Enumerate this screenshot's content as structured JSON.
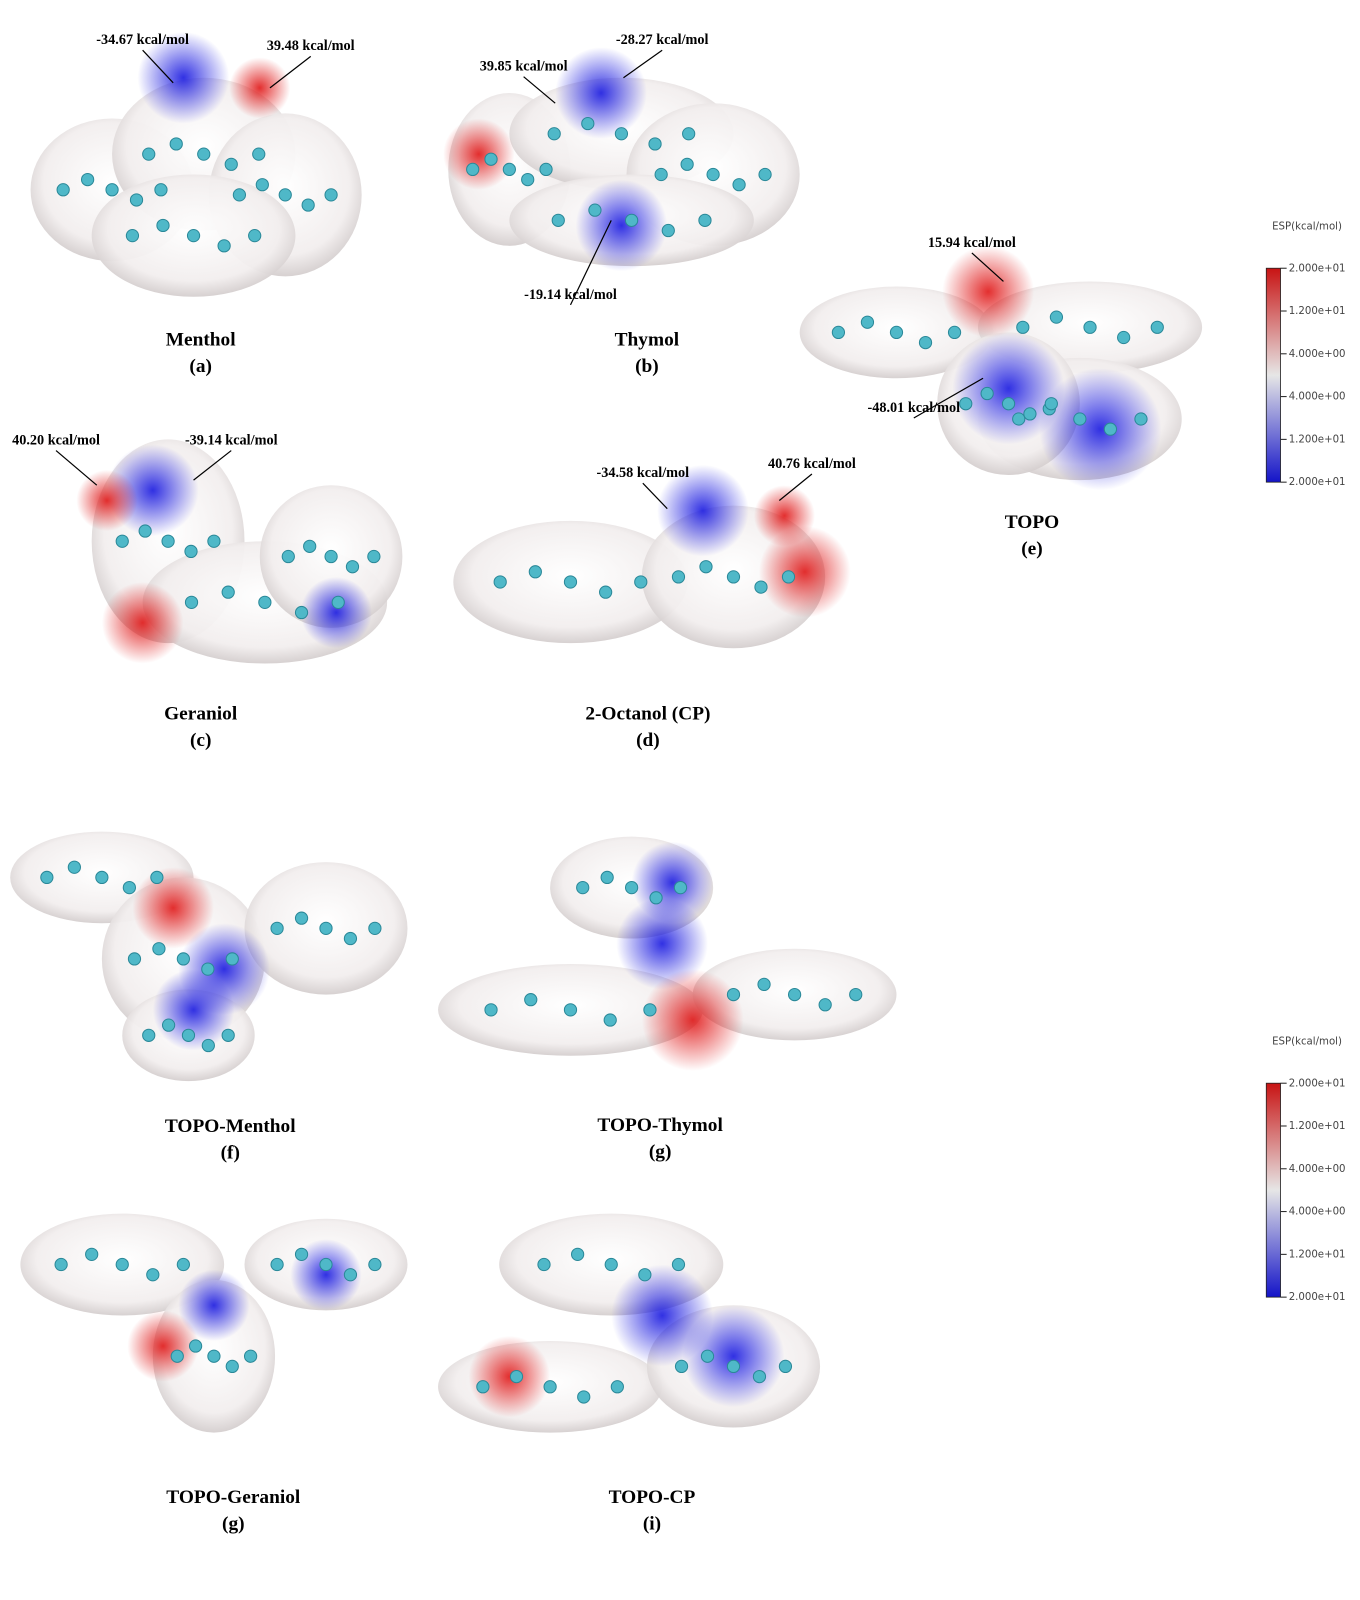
{
  "panels": [
    {
      "name": "Menthol",
      "letter": "(a)",
      "annotations": [
        "-34.67  kcal/mol",
        "39.48 kcal/mol"
      ]
    },
    {
      "name": "Thymol",
      "letter": "(b)",
      "annotations": [
        "-28.27 kcal/mol",
        "39.85 kcal/mol",
        "-19.14 kcal/mol"
      ]
    },
    {
      "name": "TOPO",
      "letter": "(e)",
      "annotations": [
        "15.94 kcal/mol",
        "-48.01  kcal/mol"
      ]
    },
    {
      "name": "Geraniol",
      "letter": "(c)",
      "annotations": [
        "40.20 kcal/mol",
        "-39.14 kcal/mol"
      ]
    },
    {
      "name": "2-Octanol (CP)",
      "letter": "(d)",
      "annotations": [
        "-34.58 kcal/mol",
        "40.76 kcal/mol"
      ]
    },
    {
      "name": "TOPO-Menthol",
      "letter": "(f)",
      "annotations": []
    },
    {
      "name": "TOPO-Thymol",
      "letter": "(g)",
      "annotations": []
    },
    {
      "name": "TOPO-Geraniol",
      "letter": "(g)",
      "annotations": []
    },
    {
      "name": "TOPO-CP",
      "letter": "(i)",
      "annotations": []
    }
  ],
  "colorbars": [
    {
      "title": "ESP(kcal/mol)",
      "ticks": [
        "2.000e+01",
        "1.200e+01",
        "4.000e+00",
        "4.000e+00",
        "1.200e+01",
        "2.000e+01"
      ]
    },
    {
      "title": "ESP(kcal/mol)",
      "ticks": [
        "2.000e+01",
        "1.200e+01",
        "4.000e+00",
        "4.000e+00",
        "1.200e+01",
        "2.000e+01"
      ]
    }
  ]
}
